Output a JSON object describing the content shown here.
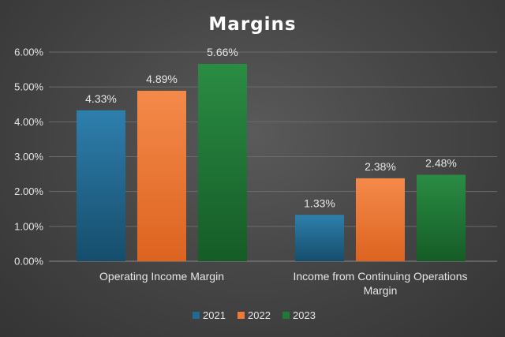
{
  "chart_data": {
    "type": "bar",
    "title": "Margins",
    "categories": [
      [
        "Operating Income Margin"
      ],
      [
        "Income from Continuing Operations",
        "Margin"
      ]
    ],
    "series": [
      {
        "name": "2021",
        "values": [
          4.33,
          1.33
        ],
        "labels": [
          "4.33%",
          "1.33%"
        ],
        "color": "#1f6b94",
        "color_top": "#2e7fad",
        "color_bottom": "#164d6b"
      },
      {
        "name": "2022",
        "values": [
          4.89,
          2.38
        ],
        "labels": [
          "4.89%",
          "2.38%"
        ],
        "color": "#ed7a35",
        "color_top": "#f48a4a",
        "color_bottom": "#dd6320"
      },
      {
        "name": "2023",
        "values": [
          5.66,
          2.48
        ],
        "labels": [
          "5.66%",
          "2.48%"
        ],
        "color": "#1e7a36",
        "color_top": "#2a8c43",
        "color_bottom": "#155c27"
      }
    ],
    "yticks": [
      "0.00%",
      "1.00%",
      "2.00%",
      "3.00%",
      "4.00%",
      "5.00%",
      "6.00%"
    ],
    "ylim": [
      0,
      6
    ],
    "grid": true,
    "legend": "bottom",
    "colors": {
      "text": "#e6e6e6",
      "title": "#ffffff",
      "grid": "#6b6b6b",
      "axis": "#8a8a8a"
    }
  }
}
